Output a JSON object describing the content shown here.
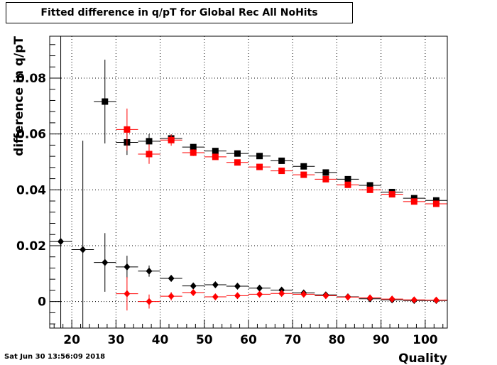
{
  "title": "Fitted difference in q/pT for Global Rec All NoHits",
  "timestamp": "Sat Jun 30 13:56:09 2018",
  "colors": {
    "series_black": "#000000",
    "series_red": "#ff0000",
    "grid": "#000000"
  },
  "chart_data": {
    "type": "scatter",
    "title": "Fitted difference in q/pT for Global Rec All NoHits",
    "xlabel": "Quality",
    "ylabel": "difference in q/pT",
    "xlim": [
      15,
      105
    ],
    "ylim": [
      -0.0095,
      0.095
    ],
    "x_ticks": [
      20,
      30,
      40,
      50,
      60,
      70,
      80,
      90,
      100
    ],
    "y_ticks": [
      0,
      0.02,
      0.04,
      0.06,
      0.08
    ],
    "x_tick_labels": [
      "20",
      "30",
      "40",
      "50",
      "60",
      "70",
      "80",
      "90",
      "100"
    ],
    "y_tick_labels": [
      "0",
      "0.02",
      "0.04",
      "0.06",
      "0.08"
    ],
    "grid": true,
    "bin_width": 5,
    "series": [
      {
        "marker": "square",
        "color": "#000000",
        "x": [
          27.5,
          32.5,
          37.5,
          42.5,
          47.5,
          52.5,
          57.5,
          62.5,
          67.5,
          72.5,
          77.5,
          82.5,
          87.5,
          92.5,
          97.5,
          102.5
        ],
        "y": [
          0.0716,
          0.057,
          0.0574,
          0.0584,
          0.0553,
          0.0539,
          0.053,
          0.0521,
          0.0504,
          0.0484,
          0.0462,
          0.0438,
          0.0416,
          0.0392,
          0.037,
          0.0362
        ],
        "err": [
          0.015,
          0.0045,
          0.0025,
          0.0015,
          0.001,
          0.0008,
          0.0007,
          0.0007,
          0.0007,
          0.0006,
          0.0006,
          0.0006,
          0.0005,
          0.0005,
          0.0005,
          0.0005
        ]
      },
      {
        "marker": "square",
        "color": "#ff0000",
        "x": [
          32.5,
          37.5,
          42.5,
          47.5,
          52.5,
          57.5,
          62.5,
          67.5,
          72.5,
          77.5,
          82.5,
          87.5,
          92.5,
          97.5,
          102.5
        ],
        "y": [
          0.0616,
          0.0528,
          0.0578,
          0.0533,
          0.0518,
          0.0498,
          0.0482,
          0.0468,
          0.0454,
          0.0438,
          0.0418,
          0.04,
          0.0384,
          0.0358,
          0.035
        ],
        "err": [
          0.0075,
          0.0035,
          0.002,
          0.0012,
          0.001,
          0.0008,
          0.0007,
          0.0007,
          0.0006,
          0.0006,
          0.0006,
          0.0005,
          0.0005,
          0.0005,
          0.0005
        ]
      },
      {
        "marker": "diamond",
        "color": "#000000",
        "x": [
          17.5,
          22.5,
          27.5,
          32.5,
          37.5,
          42.5,
          47.5,
          52.5,
          57.5,
          62.5,
          67.5,
          72.5,
          77.5,
          82.5,
          87.5,
          92.5,
          97.5,
          102.5
        ],
        "y": [
          0.0215,
          0.0186,
          0.014,
          0.0124,
          0.0109,
          0.0083,
          0.0056,
          0.006,
          0.0055,
          0.0048,
          0.0041,
          0.0031,
          0.0024,
          0.0017,
          0.001,
          0.0006,
          0.0004,
          0.0004
        ],
        "err": [
          0.095,
          0.039,
          0.0105,
          0.004,
          0.002,
          0.0012,
          0.0008,
          0.0006,
          0.0005,
          0.0005,
          0.0005,
          0.0004,
          0.0004,
          0.0004,
          0.0004,
          0.0004,
          0.0004,
          0.0004
        ]
      },
      {
        "marker": "diamond",
        "color": "#ff0000",
        "x": [
          32.5,
          37.5,
          42.5,
          47.5,
          52.5,
          57.5,
          62.5,
          67.5,
          72.5,
          77.5,
          82.5,
          87.5,
          92.5,
          97.5,
          102.5
        ],
        "y": [
          0.0028,
          0.0,
          0.0019,
          0.0032,
          0.0017,
          0.0021,
          0.0026,
          0.0029,
          0.0026,
          0.0021,
          0.0016,
          0.0013,
          0.0009,
          0.0006,
          0.0005
        ],
        "err": [
          0.006,
          0.0025,
          0.0015,
          0.001,
          0.0008,
          0.0007,
          0.0006,
          0.0006,
          0.0005,
          0.0005,
          0.0005,
          0.0004,
          0.0004,
          0.0004,
          0.0004
        ]
      }
    ]
  }
}
